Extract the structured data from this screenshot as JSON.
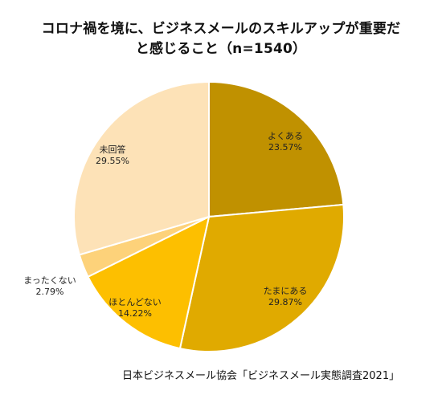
{
  "title_lines": [
    "コロナ禍を境に、ビジネスメールのスキルアップが重要だ",
    "と感じること（n=1540）"
  ],
  "source": "日本ビジネスメール協会「ビジネスメール実態調査2021」",
  "chart_data": {
    "type": "pie",
    "title": "コロナ禍を境に、ビジネスメールのスキルアップが重要だと感じること（n=1540）",
    "start_angle_deg": 0,
    "direction": "clockwise",
    "slices": [
      {
        "label": "よくある",
        "value_label": "23.57%",
        "value": 23.57,
        "color": "#c09100"
      },
      {
        "label": "たまにある",
        "value_label": "29.87%",
        "value": 29.87,
        "color": "#e0aa00"
      },
      {
        "label": "ほとんどない",
        "value_label": "14.22%",
        "value": 14.22,
        "color": "#fdbf00"
      },
      {
        "label": "まったくない",
        "value_label": "2.79%",
        "value": 2.79,
        "color": "#fdd27a"
      },
      {
        "label": "未回答",
        "value_label": "29.55%",
        "value": 29.55,
        "color": "#fde2b7"
      }
    ]
  }
}
